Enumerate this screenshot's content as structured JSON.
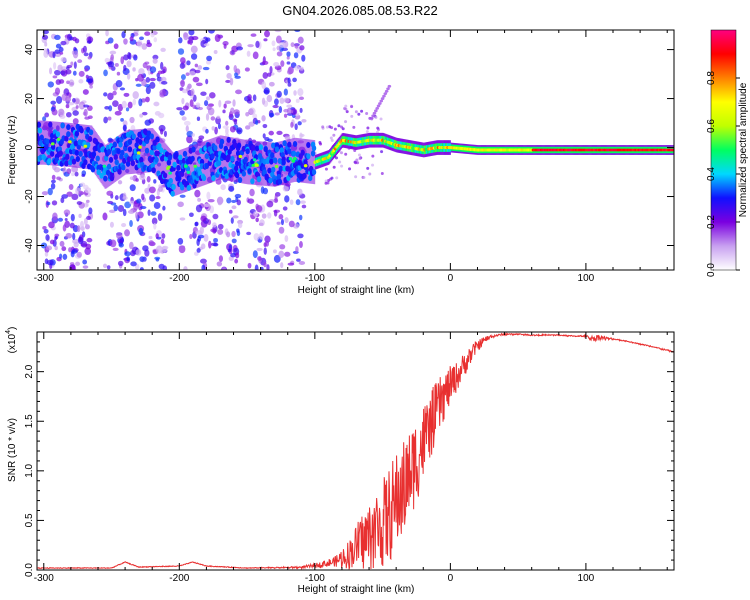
{
  "title": "GN04.2026.085.08.53.R22",
  "chart_data": [
    {
      "type": "heatmap",
      "name": "spectrogram",
      "xlabel": "Height of straight line (km)",
      "ylabel": "Frequency (Hz)",
      "xlim": [
        -305,
        165
      ],
      "ylim": [
        -50,
        48
      ],
      "xticks": [
        -300,
        -200,
        -100,
        0,
        100
      ],
      "yticks": [
        -40,
        -20,
        0,
        20,
        40
      ],
      "ridge_frequency": {
        "x": [
          -300,
          -280,
          -265,
          -255,
          -240,
          -220,
          -205,
          -190,
          -170,
          -150,
          -130,
          -115,
          -100,
          -90,
          -80,
          -70,
          -60,
          -50,
          -40,
          -30,
          -20,
          -10,
          0,
          20,
          40,
          60,
          80,
          100,
          120,
          140,
          165
        ],
        "y": [
          2,
          1,
          0,
          -8,
          -2,
          -1,
          -11,
          -8,
          -4,
          -6,
          -7,
          -5,
          -6,
          -4,
          3,
          2,
          3,
          3,
          1,
          0,
          -1,
          0,
          0,
          -1,
          -1,
          -1,
          -1,
          -1,
          -1,
          -1,
          -1
        ]
      },
      "colorbar": {
        "label": "Normalized spectral amplitude",
        "range": [
          0.0,
          1.0
        ],
        "ticks": [
          "0.0",
          "0.2",
          "0.4",
          "0.6",
          "0.8"
        ],
        "colors": [
          "#ffffff",
          "#c8a0f0",
          "#7a00e0",
          "#1010ff",
          "#00d8ff",
          "#00ff60",
          "#c0ff00",
          "#ffff00",
          "#ff8000",
          "#ff0000",
          "#ff0080"
        ]
      }
    },
    {
      "type": "line",
      "name": "snr",
      "xlabel": "Height of straight line (km)",
      "ylabel": "SNR (10 * v/v)",
      "exponent_label": "(x10",
      "exponent_power": "4",
      "exponent_close": ")",
      "xlim": [
        -305,
        165
      ],
      "ylim": [
        0.0,
        2.4
      ],
      "xticks": [
        -300,
        -200,
        -100,
        0,
        100
      ],
      "yticks": [
        "0.0",
        "0.5",
        "1.0",
        "1.5",
        "2.0"
      ],
      "series": [
        {
          "name": "SNR",
          "color": "#e83030",
          "x": [
            -305,
            -250,
            -240,
            -230,
            -200,
            -190,
            -180,
            -150,
            -110,
            -100,
            -85,
            -80,
            -75,
            -70,
            -65,
            -60,
            -55,
            -50,
            -45,
            -40,
            -35,
            -30,
            -25,
            -20,
            -15,
            -10,
            -5,
            0,
            5,
            10,
            15,
            20,
            25,
            30,
            35,
            40,
            50,
            60,
            70,
            80,
            90,
            100,
            105,
            110,
            115,
            120,
            130,
            140,
            150,
            165
          ],
          "y": [
            0.02,
            0.02,
            0.08,
            0.03,
            0.04,
            0.08,
            0.04,
            0.02,
            0.03,
            0.05,
            0.1,
            0.15,
            0.2,
            0.3,
            0.38,
            0.45,
            0.52,
            0.6,
            0.7,
            0.85,
            0.95,
            1.1,
            1.25,
            1.4,
            1.55,
            1.7,
            1.82,
            1.92,
            2.0,
            2.1,
            2.2,
            2.28,
            2.33,
            2.36,
            2.37,
            2.38,
            2.38,
            2.37,
            2.37,
            2.37,
            2.36,
            2.36,
            2.34,
            2.36,
            2.34,
            2.33,
            2.31,
            2.28,
            2.25,
            2.2
          ],
          "noise_amplitude": [
            0,
            0,
            0,
            0,
            0,
            0,
            0,
            0,
            0.01,
            0.02,
            0.05,
            0.1,
            0.15,
            0.2,
            0.3,
            0.35,
            0.4,
            0.45,
            0.5,
            0.5,
            0.5,
            0.45,
            0.45,
            0.4,
            0.35,
            0.3,
            0.25,
            0.2,
            0.15,
            0.12,
            0.1,
            0.06,
            0.04,
            0.02,
            0.01,
            0.01,
            0.005,
            0.005,
            0.005,
            0.005,
            0.005,
            0.005,
            0.03,
            0.03,
            0.02,
            0.005,
            0.005,
            0.005,
            0.005,
            0.005
          ]
        }
      ]
    }
  ]
}
